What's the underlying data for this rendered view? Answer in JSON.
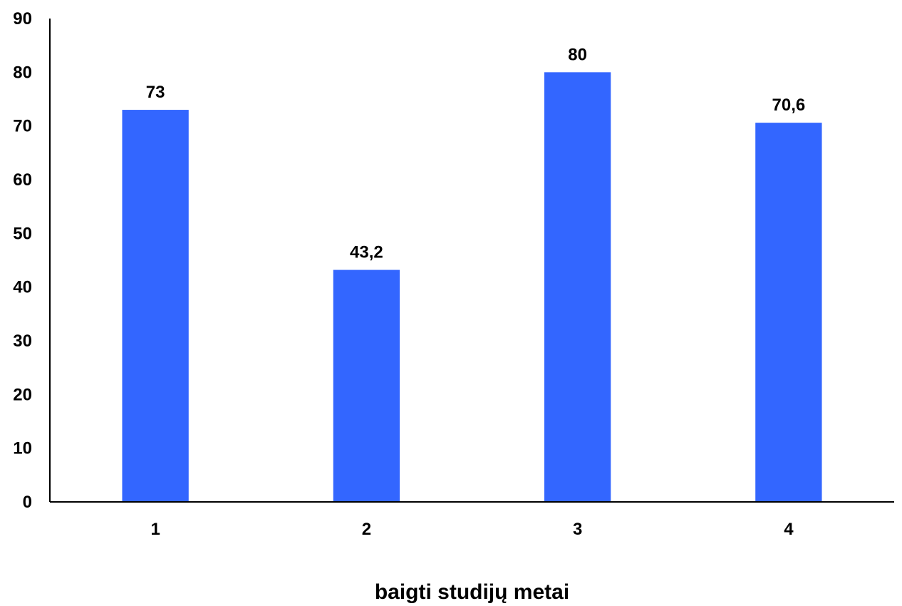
{
  "chart_data": {
    "type": "bar",
    "categories": [
      "1",
      "2",
      "3",
      "4"
    ],
    "values": [
      73,
      43.2,
      80,
      70.6
    ],
    "data_labels": [
      "73",
      "43,2",
      "80",
      "70,6"
    ],
    "xlabel": "baigti studijų metai",
    "ylabel": "",
    "ylim": [
      0,
      90
    ],
    "yticks": [
      0,
      10,
      20,
      30,
      40,
      50,
      60,
      70,
      80,
      90
    ],
    "grid": false,
    "legend": "none",
    "bar_color": "#3366ff",
    "axis_color": "#000000"
  }
}
